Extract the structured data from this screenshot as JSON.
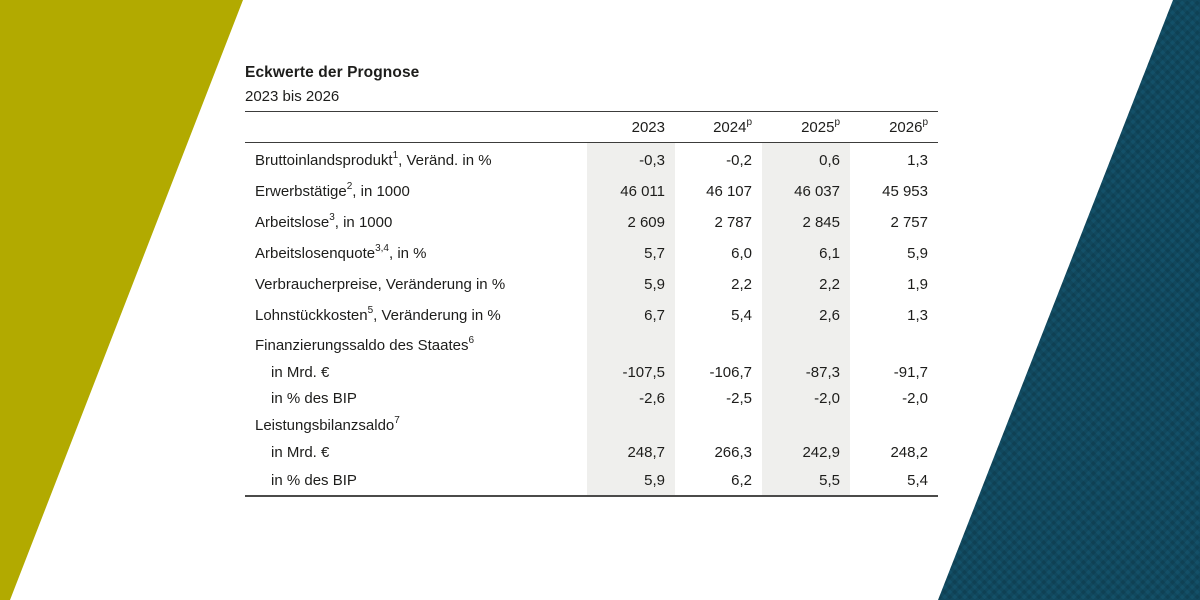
{
  "accents": {
    "left_color": "#b2aa00",
    "right_color": "#135068",
    "column_highlight": "#efefed"
  },
  "chart_data": {
    "type": "table",
    "title": "Eckwerte der Prognose",
    "subtitle": "2023 bis 2026",
    "columns": [
      {
        "label": "2023",
        "sup": ""
      },
      {
        "label": "2024",
        "sup": "p"
      },
      {
        "label": "2025",
        "sup": "p"
      },
      {
        "label": "2026",
        "sup": "p"
      }
    ],
    "rows": [
      {
        "kind": "data",
        "label": "Bruttoinlandsprodukt",
        "sup": "1",
        "suffix": ", Veränd. in %",
        "values": [
          "-0,3",
          "-0,2",
          "0,6",
          "1,3"
        ]
      },
      {
        "kind": "data",
        "label": "Erwerbstätige",
        "sup": "2",
        "suffix": ", in 1000",
        "values": [
          "46 011",
          "46 107",
          "46 037",
          "45 953"
        ]
      },
      {
        "kind": "data",
        "label": "Arbeitslose",
        "sup": "3",
        "suffix": ", in 1000",
        "values": [
          "2 609",
          "2 787",
          "2 845",
          "2 757"
        ]
      },
      {
        "kind": "data",
        "label": "Arbeitslosenquote",
        "sup": "3,4",
        "suffix": ", in %",
        "values": [
          "5,7",
          "6,0",
          "6,1",
          "5,9"
        ]
      },
      {
        "kind": "data",
        "label": "Verbraucherpreise, Veränderung in %",
        "sup": "",
        "suffix": "",
        "values": [
          "5,9",
          "2,2",
          "2,2",
          "1,9"
        ]
      },
      {
        "kind": "data",
        "label": "Lohnstückkosten",
        "sup": "5",
        "suffix": ", Veränderung in %",
        "values": [
          "6,7",
          "5,4",
          "2,6",
          "1,3"
        ]
      },
      {
        "kind": "group",
        "label": "Finanzierungssaldo des Staates",
        "sup": "6",
        "suffix": "",
        "values": [
          "",
          "",
          "",
          ""
        ]
      },
      {
        "kind": "sub",
        "label": "in Mrd. €",
        "sup": "",
        "suffix": "",
        "values": [
          "-107,5",
          "-106,7",
          "-87,3",
          "-91,7"
        ]
      },
      {
        "kind": "sub",
        "label": "in % des BIP",
        "sup": "",
        "suffix": "",
        "values": [
          "-2,6",
          "-2,5",
          "-2,0",
          "-2,0"
        ]
      },
      {
        "kind": "group",
        "label": "Leistungsbilanzsaldo",
        "sup": "7",
        "suffix": "",
        "values": [
          "",
          "",
          "",
          ""
        ]
      },
      {
        "kind": "sub",
        "label": "in Mrd. €",
        "sup": "",
        "suffix": "",
        "values": [
          "248,7",
          "266,3",
          "242,9",
          "248,2"
        ]
      },
      {
        "kind": "sub",
        "label": "in % des BIP",
        "sup": "",
        "suffix": "",
        "values": [
          "5,9",
          "6,2",
          "5,5",
          "5,4"
        ]
      }
    ]
  }
}
